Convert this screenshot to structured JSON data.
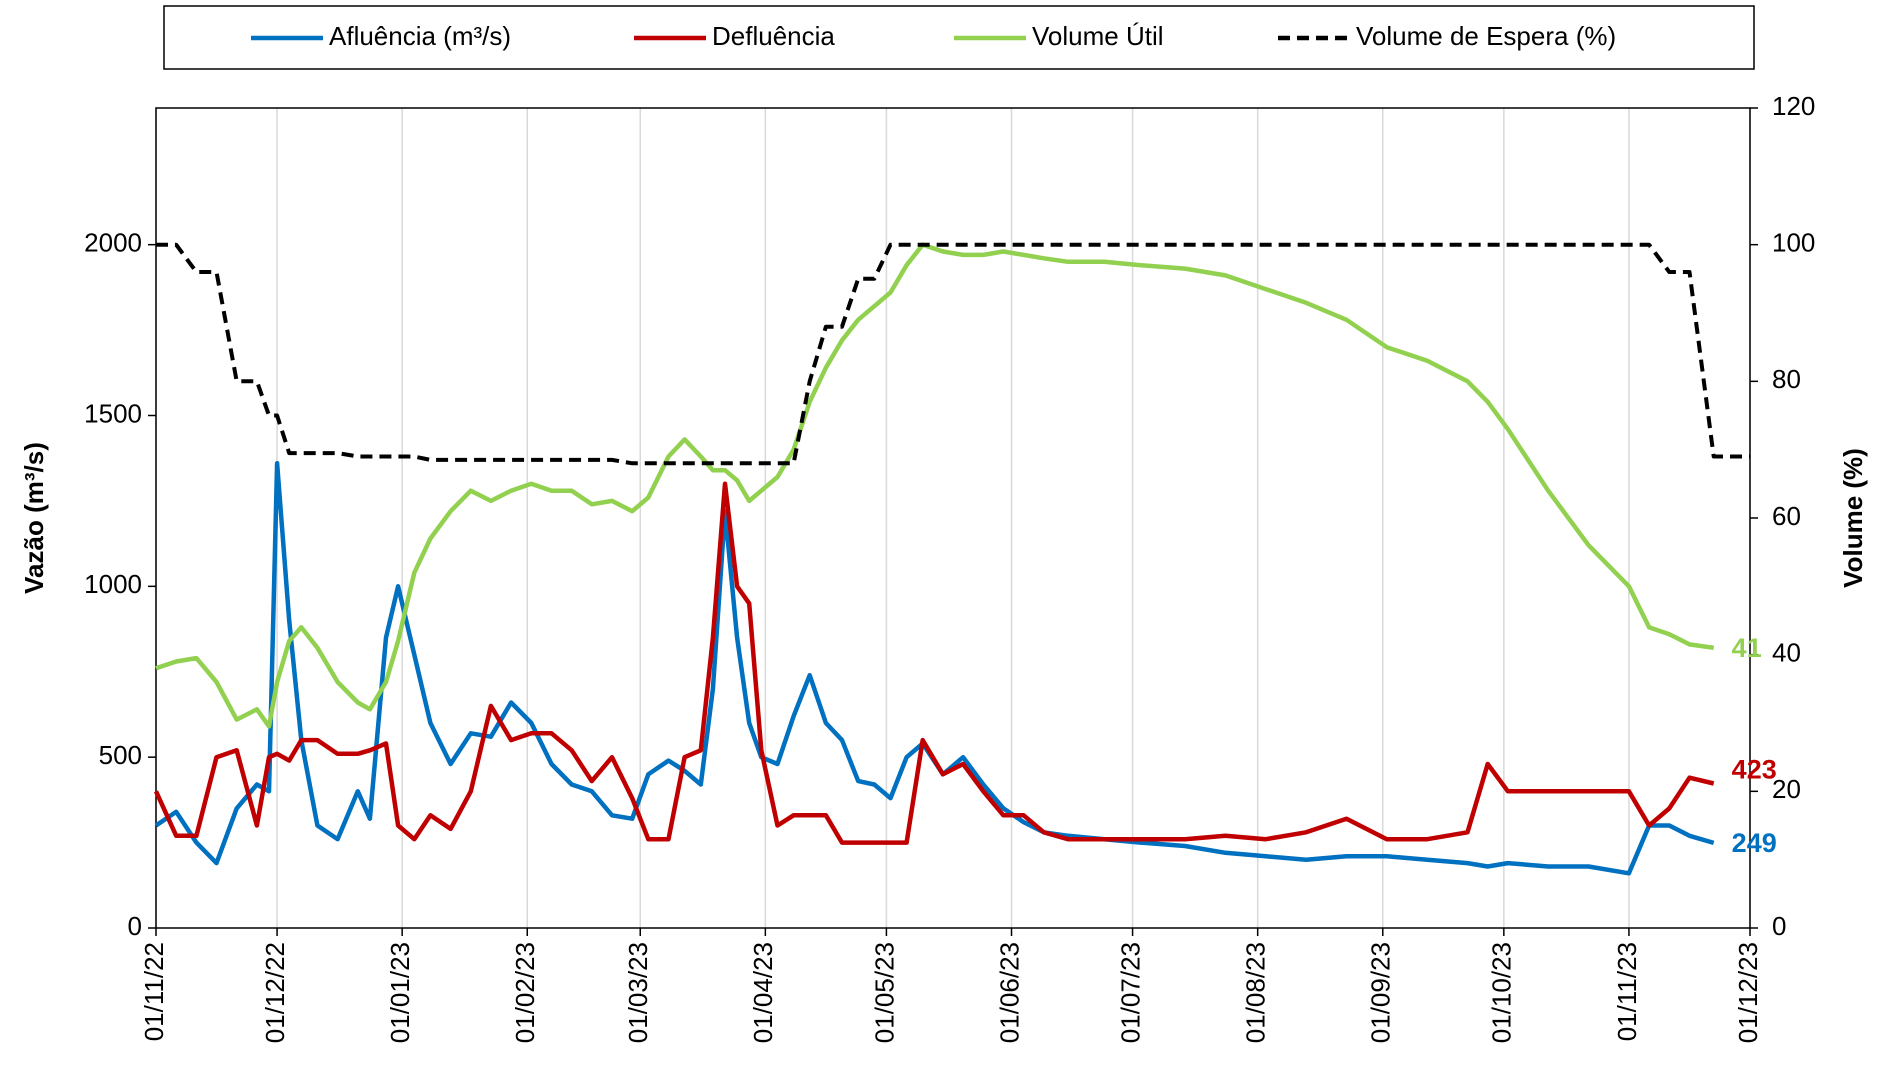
{
  "chart_data": {
    "type": "line",
    "y_label": "Vazão (m³/s)",
    "y2_label": "Volume (%)",
    "x": [
      "2022-11-01",
      "2022-11-06",
      "2022-11-11",
      "2022-11-16",
      "2022-11-21",
      "2022-11-26",
      "2022-11-29",
      "2022-12-01",
      "2022-12-04",
      "2022-12-07",
      "2022-12-11",
      "2022-12-16",
      "2022-12-21",
      "2022-12-24",
      "2022-12-28",
      "2022-12-31",
      "2023-01-04",
      "2023-01-08",
      "2023-01-13",
      "2023-01-18",
      "2023-01-23",
      "2023-01-28",
      "2023-02-02",
      "2023-02-07",
      "2023-02-12",
      "2023-02-17",
      "2023-02-22",
      "2023-02-27",
      "2023-03-03",
      "2023-03-08",
      "2023-03-12",
      "2023-03-16",
      "2023-03-19",
      "2023-03-22",
      "2023-03-25",
      "2023-03-28",
      "2023-03-31",
      "2023-04-04",
      "2023-04-08",
      "2023-04-12",
      "2023-04-16",
      "2023-04-20",
      "2023-04-24",
      "2023-04-28",
      "2023-05-02",
      "2023-05-06",
      "2023-05-10",
      "2023-05-15",
      "2023-05-20",
      "2023-05-25",
      "2023-05-30",
      "2023-06-04",
      "2023-06-09",
      "2023-06-15",
      "2023-06-24",
      "2023-07-03",
      "2023-07-14",
      "2023-07-24",
      "2023-08-03",
      "2023-08-13",
      "2023-08-23",
      "2023-09-02",
      "2023-09-12",
      "2023-09-22",
      "2023-09-27",
      "2023-10-02",
      "2023-10-12",
      "2023-10-22",
      "2023-11-01",
      "2023-11-06",
      "2023-11-11",
      "2023-11-16",
      "2023-11-22",
      "2023-12-01"
    ],
    "series": [
      {
        "name": "Afluência (m³/s)",
        "color": "#0070c0",
        "axis": "y",
        "data_label": "last",
        "values": [
          300,
          340,
          250,
          190,
          350,
          420,
          400,
          1360,
          900,
          550,
          300,
          260,
          400,
          320,
          850,
          1000,
          800,
          600,
          480,
          570,
          560,
          660,
          600,
          480,
          420,
          400,
          330,
          320,
          450,
          490,
          460,
          420,
          700,
          1220,
          850,
          600,
          500,
          480,
          620,
          740,
          600,
          550,
          430,
          420,
          380,
          500,
          540,
          450,
          500,
          420,
          350,
          310,
          280,
          270,
          260,
          250,
          240,
          220,
          210,
          200,
          210,
          210,
          200,
          190,
          180,
          190,
          180,
          180,
          160,
          300,
          300,
          270,
          249,
          null
        ]
      },
      {
        "name": "Defluência",
        "color": "#c00000",
        "axis": "y",
        "data_label": "last",
        "values": [
          400,
          270,
          270,
          500,
          520,
          300,
          500,
          510,
          490,
          550,
          550,
          510,
          510,
          520,
          540,
          300,
          260,
          330,
          290,
          400,
          650,
          550,
          570,
          570,
          520,
          430,
          500,
          380,
          260,
          260,
          500,
          520,
          850,
          1300,
          1000,
          950,
          520,
          300,
          330,
          330,
          330,
          250,
          250,
          250,
          250,
          250,
          550,
          450,
          480,
          400,
          330,
          330,
          280,
          260,
          260,
          260,
          260,
          270,
          260,
          280,
          320,
          260,
          260,
          280,
          480,
          400,
          400,
          400,
          400,
          300,
          350,
          440,
          423,
          null
        ]
      },
      {
        "name": "Volume Útil",
        "color": "#92d050",
        "axis": "y2",
        "data_label": "last",
        "values": [
          38,
          39,
          39.5,
          36,
          30.5,
          32,
          29.5,
          36,
          42,
          44,
          41,
          36,
          33,
          32,
          36,
          42,
          52,
          57,
          61,
          64,
          62.5,
          64,
          65,
          64,
          64,
          62,
          62.5,
          61,
          63,
          69,
          71.5,
          69,
          67,
          67,
          65.5,
          62.5,
          64,
          66,
          70,
          77,
          82,
          86,
          89,
          91,
          93,
          97,
          100,
          99,
          98.5,
          98.5,
          99,
          98.5,
          98,
          97.5,
          97.5,
          97,
          96.5,
          95.5,
          93.5,
          91.5,
          89,
          85,
          83,
          80,
          77,
          73,
          64,
          56,
          50,
          44,
          43,
          41.5,
          41,
          null
        ]
      },
      {
        "name": "Volume de Espera (%)",
        "color": "#000000",
        "axis": "y2",
        "dashed": true,
        "values": [
          100,
          100,
          96,
          96,
          80,
          80,
          75,
          75,
          69.5,
          69.5,
          69.5,
          69.5,
          69,
          69,
          69,
          69,
          69,
          68.5,
          68.5,
          68.5,
          68.5,
          68.5,
          68.5,
          68.5,
          68.5,
          68.5,
          68.5,
          68,
          68,
          68,
          68,
          68,
          68,
          68,
          68,
          68,
          68,
          68,
          68,
          80,
          88,
          88,
          95,
          95,
          100,
          100,
          100,
          100,
          100,
          100,
          100,
          100,
          100,
          100,
          100,
          100,
          100,
          100,
          100,
          100,
          100,
          100,
          100,
          100,
          100,
          100,
          100,
          100,
          100,
          100,
          96,
          96,
          69,
          69
        ]
      }
    ],
    "xlim": [
      "2022-11-01",
      "2023-12-01"
    ],
    "xticks": [
      {
        "value": "2022-11-01",
        "label": "01/11/22"
      },
      {
        "value": "2022-12-01",
        "label": "01/12/22"
      },
      {
        "value": "2023-01-01",
        "label": "01/01/23"
      },
      {
        "value": "2023-02-01",
        "label": "01/02/23"
      },
      {
        "value": "2023-03-01",
        "label": "01/03/23"
      },
      {
        "value": "2023-04-01",
        "label": "01/04/23"
      },
      {
        "value": "2023-05-01",
        "label": "01/05/23"
      },
      {
        "value": "2023-06-01",
        "label": "01/06/23"
      },
      {
        "value": "2023-07-01",
        "label": "01/07/23"
      },
      {
        "value": "2023-08-01",
        "label": "01/08/23"
      },
      {
        "value": "2023-09-01",
        "label": "01/09/23"
      },
      {
        "value": "2023-10-01",
        "label": "01/10/23"
      },
      {
        "value": "2023-11-01",
        "label": "01/11/23"
      },
      {
        "value": "2023-12-01",
        "label": "01/12/23"
      }
    ],
    "ylim": [
      0,
      2400
    ],
    "yticks": [
      0,
      500,
      1000,
      1500,
      2000
    ],
    "y2lim": [
      0,
      120
    ],
    "y2ticks": [
      0,
      20,
      40,
      60,
      80,
      100,
      120
    ],
    "grid": "x",
    "legend": "top"
  }
}
